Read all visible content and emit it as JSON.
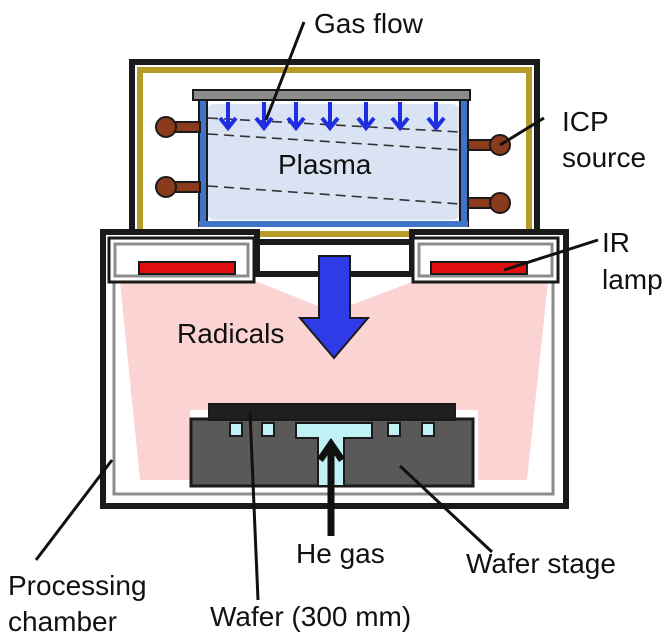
{
  "labels": {
    "gas_flow": "Gas flow",
    "plasma": "Plasma",
    "icp_line1": "ICP",
    "icp_line2": "source",
    "ir_line1": "IR",
    "ir_line2": "lamp",
    "radicals": "Radicals",
    "he_gas": "He gas",
    "wafer_stage": "Wafer stage",
    "chamber_line1": "Processing",
    "chamber_line2": "chamber",
    "wafer": "Wafer (300 mm)"
  },
  "colors": {
    "outline": "#1a1a1a",
    "icp_frame": "#b79a2a",
    "quartz_tube": "#3f74c9",
    "plasma": "#d9e3f3",
    "gas_arrows": "#1f2ee0",
    "coil": "#8a3b1c",
    "lamp": "#e01010",
    "radical_glow": "#fcd3d3",
    "radical_arrow": "#2f3be6",
    "stage": "#595959",
    "wafer": "#1f1f1f",
    "he_channel": "#bff1f5",
    "chamber_wall": "#8c8c8c"
  }
}
